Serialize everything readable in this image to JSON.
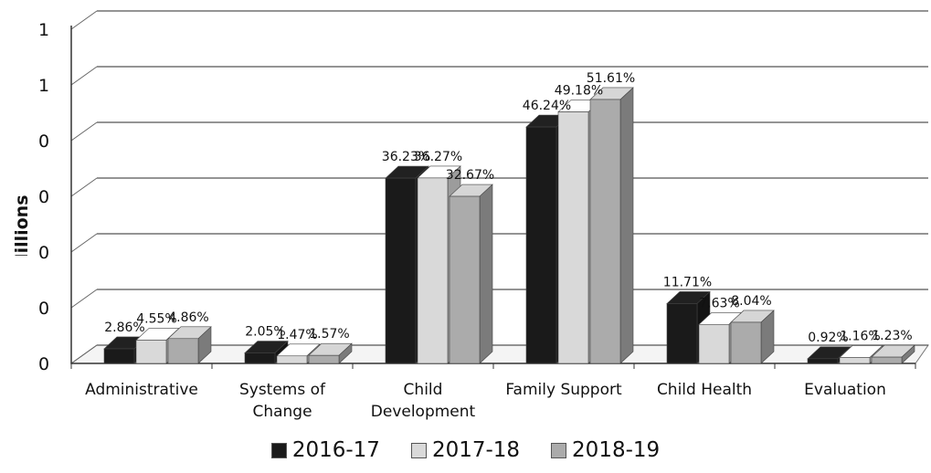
{
  "chart_data": {
    "type": "bar",
    "ylabel": "Millions $",
    "yticks": [
      "0",
      "0",
      "0",
      "0",
      "0",
      "1",
      "1"
    ],
    "categories": [
      [
        "Administrative"
      ],
      [
        "Systems of",
        "Change"
      ],
      [
        "Child",
        "Development"
      ],
      [
        "Family Support"
      ],
      [
        "Child Health"
      ],
      [
        "Evaluation"
      ]
    ],
    "series": [
      {
        "name": "2016-17",
        "color": "#1a1a1a",
        "values": [
          2.86,
          2.05,
          36.23,
          46.24,
          11.71,
          0.92
        ],
        "labels": [
          "2.86%",
          "2.05%",
          "36.23%",
          "46.24%",
          "11.71%",
          "0.92%"
        ]
      },
      {
        "name": "2017-18",
        "color": "#d9d9d9",
        "values": [
          4.55,
          1.47,
          36.27,
          49.18,
          7.63,
          1.16
        ],
        "labels": [
          "4.55%",
          "1.47%",
          "36.27%",
          "49.18%",
          "7.63%",
          "1.16%"
        ]
      },
      {
        "name": "2018-19",
        "color": "#ababab",
        "values": [
          4.86,
          1.57,
          32.67,
          51.61,
          8.04,
          1.23
        ],
        "labels": [
          "4.86%",
          "1.57%",
          "32.67%",
          "51.61%",
          "8.04%",
          "1.23%"
        ]
      }
    ],
    "grid": true,
    "legend_position": "bottom"
  }
}
